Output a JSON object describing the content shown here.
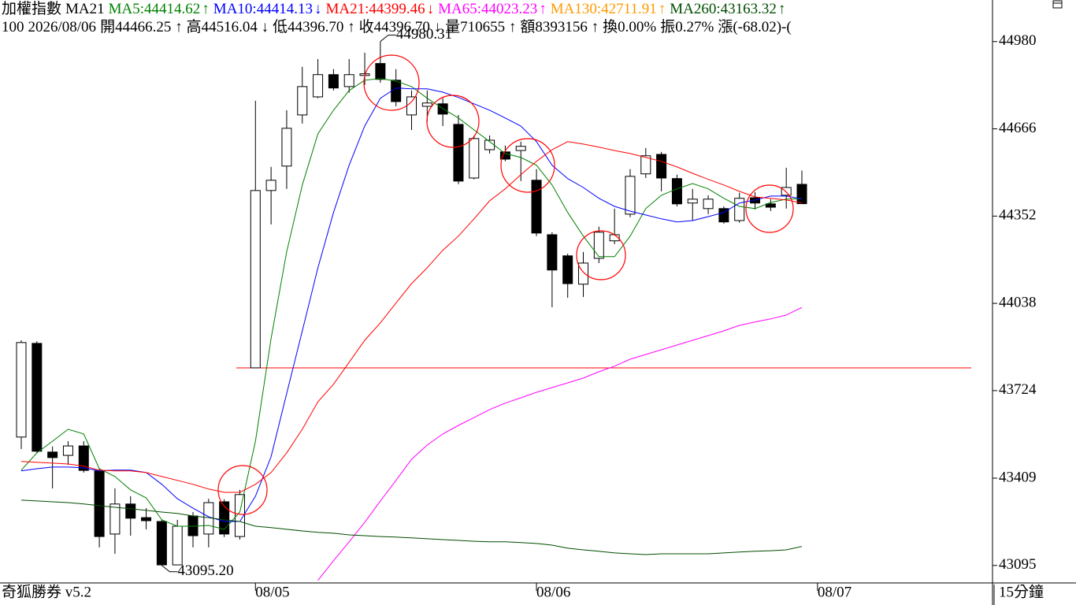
{
  "header": {
    "title": "加權指數",
    "indicator": "MA21",
    "info": [
      "100",
      "2026/08/06",
      "開44466.25 ↑",
      "高44516.04 ↓",
      "低44396.70 ↑",
      "收44396.70 ↓",
      "量710655 ↑",
      "額8393156 ↑",
      "換0.00%",
      "振0.27%",
      "漲(-68.02)-("
    ]
  },
  "footer": {
    "app": "奇狐勝券 v5.2",
    "period": "15分鐘"
  },
  "chart_data": {
    "type": "candlestick",
    "ylim": [
      43032,
      45002
    ],
    "yticks": [
      44980,
      44666,
      44352,
      44038,
      43724,
      43409,
      43095
    ],
    "xticks": [
      {
        "value": 15,
        "label": "08/05"
      },
      {
        "value": 33,
        "label": "08/06"
      },
      {
        "value": 51,
        "label": "08/07"
      }
    ],
    "up_color": "#ffffff",
    "down_color": "#000000",
    "open": [
      43557,
      43894,
      43503,
      43491,
      43525,
      43435,
      43208,
      43316,
      43267,
      43253,
      43097,
      43273,
      43208,
      43324,
      43199,
      43806,
      44444,
      44532,
      44716,
      44781,
      44861,
      44818,
      44858,
      44901,
      44841,
      44716,
      44747,
      44756,
      44682,
      44489,
      44591,
      44583,
      44588,
      44481,
      44285,
      44209,
      44107,
      44200,
      44263,
      44359,
      44504,
      44574,
      44487,
      44399,
      44379,
      44379,
      44336,
      44418,
      44396,
      44427,
      44466.25
    ],
    "high": [
      43905,
      43902,
      43523,
      43542,
      43542,
      43443,
      43372,
      43344,
      43301,
      43259,
      43259,
      43287,
      43335,
      43333,
      43367,
      44767,
      44529,
      44733,
      44889,
      44917,
      44881,
      44917,
      44940,
      44980.31,
      44881,
      44804,
      44804,
      44776,
      44716,
      44642,
      44642,
      44606,
      44620,
      44521,
      44294,
      44217,
      44223,
      44314,
      44379,
      44521,
      44597,
      44583,
      44501,
      44450,
      44427,
      44387,
      44436,
      44438,
      44413,
      44526,
      44516.04
    ],
    "low": [
      43514,
      43500,
      43372,
      43457,
      43429,
      43160,
      43137,
      43202,
      43225,
      43095.2,
      43096,
      43160,
      43160,
      43197,
      43188,
      43806,
      44322,
      44450,
      44685,
      44776,
      44804,
      44796,
      44824,
      44832,
      44747,
      44662,
      44691,
      44676,
      44467,
      44484,
      44577,
      44549,
      44478,
      44280,
      44024,
      44058,
      44061,
      44183,
      44251,
      44348,
      44489,
      44441,
      44387,
      44336,
      44359,
      44325,
      44328,
      44376,
      44370,
      44379,
      44396.7
    ],
    "close": [
      43897,
      43506,
      43483,
      43525,
      43437,
      43199,
      43316,
      43265,
      43256,
      43097,
      43236,
      43202,
      43321,
      43208,
      43350,
      44444,
      44481,
      44668,
      44818,
      44861,
      44813,
      44861,
      44864,
      44844,
      44764,
      44781,
      44759,
      44719,
      44478,
      44631,
      44625,
      44557,
      44603,
      44291,
      44158,
      44109,
      44183,
      44294,
      44285,
      44495,
      44569,
      44489,
      44396,
      44413,
      44413,
      44331,
      44416,
      44399,
      44384,
      44455,
      44396.7
    ],
    "high_label": "44980.31",
    "low_label": "43095.20",
    "reference_line": {
      "value": 43806,
      "color": "#ff0000"
    },
    "series": [
      {
        "label": "MA5:44414.62",
        "trend": "↑",
        "color": "#008000",
        "values": [
          43438,
          43500,
          43542,
          43585,
          43568,
          43443,
          43415,
          43367,
          43338,
          43259,
          43236,
          43236,
          43239,
          43225,
          43287,
          43542,
          43911,
          44223,
          44464,
          44648,
          44733,
          44804,
          44841,
          44847,
          44838,
          44818,
          44776,
          44739,
          44705,
          44662,
          44620,
          44577,
          44563,
          44535,
          44464,
          44365,
          44280,
          44206,
          44206,
          44280,
          44379,
          44427,
          44450,
          44469,
          44450,
          44416,
          44387,
          44379,
          44401,
          44413,
          44414.62
        ]
      },
      {
        "label": "MA10:44414.13",
        "trend": "↓",
        "color": "#0000ff",
        "values": [
          43435,
          43443,
          43449,
          43449,
          43446,
          43435,
          43438,
          43438,
          43429,
          43387,
          43335,
          43301,
          43270,
          43253,
          43253,
          43344,
          43486,
          43713,
          43939,
          44166,
          44365,
          44535,
          44676,
          44776,
          44813,
          44810,
          44810,
          44798,
          44779,
          44756,
          44733,
          44705,
          44676,
          44620,
          44535,
          44487,
          44455,
          44416,
          44387,
          44370,
          44356,
          44342,
          44331,
          44336,
          44350,
          44365,
          44399,
          44410,
          44424,
          44424,
          44414.13
        ]
      },
      {
        "label": "MA21:44399.46",
        "trend": "↓",
        "color": "#ff0000",
        "values": [
          43469,
          43466,
          43463,
          43460,
          43452,
          43438,
          43435,
          43435,
          43429,
          43415,
          43401,
          43387,
          43370,
          43358,
          43358,
          43387,
          43429,
          43500,
          43585,
          43684,
          43747,
          43826,
          43905,
          43968,
          44039,
          44109,
          44166,
          44229,
          44280,
          44342,
          44407,
          44450,
          44501,
          44549,
          44591,
          44620,
          44611,
          44600,
          44588,
          44577,
          44563,
          44549,
          44529,
          44506,
          44484,
          44464,
          44441,
          44421,
          44416,
          44410,
          44399.46
        ]
      },
      {
        "label": "MA65:44023.23",
        "trend": "↑",
        "color": "#ff00ff",
        "values": [
          null,
          null,
          null,
          null,
          null,
          null,
          null,
          null,
          null,
          null,
          null,
          null,
          null,
          null,
          null,
          null,
          null,
          null,
          null,
          43041,
          43112,
          43180,
          43250,
          43327,
          43401,
          43477,
          43528,
          43568,
          43599,
          43627,
          43656,
          43679,
          43698,
          43718,
          43735,
          43752,
          43769,
          43792,
          43812,
          43837,
          43854,
          43871,
          43888,
          43905,
          43922,
          43939,
          43959,
          43971,
          43982,
          43996,
          44023.23
        ]
      },
      {
        "label": "MA130:42711.91",
        "trend": "↑",
        "color": "#ff9900"
      },
      {
        "label": "MA260:43163.32",
        "trend": "↑",
        "color": "#004d00",
        "values": [
          43330,
          43327,
          43324,
          43321,
          43316,
          43310,
          43304,
          43299,
          43293,
          43287,
          43282,
          43273,
          43267,
          43259,
          43253,
          43236,
          43231,
          43225,
          43219,
          43214,
          43211,
          43205,
          43202,
          43199,
          43197,
          43194,
          43191,
          43188,
          43185,
          43182,
          43180,
          43180,
          43177,
          43174,
          43168,
          43157,
          43151,
          43146,
          43140,
          43137,
          43134,
          43137,
          43137,
          43137,
          43137,
          43140,
          43143,
          43146,
          43148,
          43151,
          43163.32
        ]
      }
    ]
  }
}
